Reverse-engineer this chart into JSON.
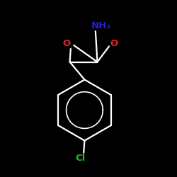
{
  "bg": "#000000",
  "bond_color": "#ffffff",
  "o_color": "#dd2222",
  "n_color": "#2222cc",
  "cl_color": "#22bb22",
  "lw": 1.6,
  "nh2_text": "NH₂",
  "o_text": "O",
  "cl_text": "Cl",
  "fontsize": 9.5
}
